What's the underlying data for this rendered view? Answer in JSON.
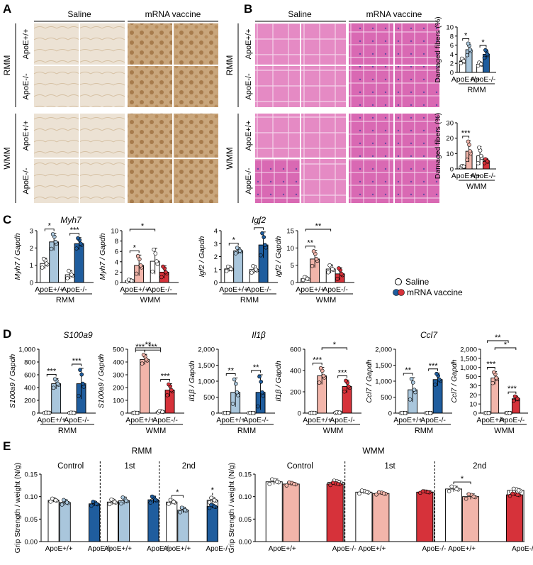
{
  "colors": {
    "saline": "#ffffff",
    "rmm_wt": "#a9c6dc",
    "rmm_ko": "#1f5d9e",
    "wmm_wt": "#f2b5aa",
    "wmm_ko": "#d6323a",
    "dab": "#b48a5e",
    "he": "#d977b8"
  },
  "panels": {
    "A": "A",
    "B": "B",
    "C": "C",
    "D": "D",
    "E": "E"
  },
  "image_panel": {
    "col_saline": "Saline",
    "col_vaccine": "mRNA vaccine",
    "grp_rmm": "RMM",
    "grp_wmm": "WMM",
    "row_wt": "ApoE+/+",
    "row_ko": "ApoE-/-"
  },
  "legend": {
    "saline": "Saline",
    "vaccine": "mRNA vaccine"
  },
  "gene": {
    "myh7": "Myh7",
    "igf2": "Igf2",
    "s100a9": "S100a9",
    "il1b": "Il1β",
    "ccl7": "Ccl7"
  },
  "ylabels": {
    "damaged": "Damaged fibers (%)",
    "myh7": "Myh7 / Gapdh",
    "igf2": "Igf2 / Gapdh",
    "s100a9": "S100a9 / Gapdh",
    "il1b": "Il1β / Gapdh",
    "ccl7": "Ccl7 / Gapdh",
    "grip": "Grip Strength / weight (N/g)"
  },
  "xlabels": {
    "wt": "ApoE+/+",
    "ko": "ApoE-/-",
    "rmm": "RMM",
    "wmm": "WMM"
  },
  "grip_titles": {
    "rmm": "RMM",
    "wmm": "WMM",
    "control": "Control",
    "first": "1st",
    "second": "2nd"
  },
  "chart_data": [
    {
      "id": "B_rmm",
      "type": "bar",
      "ylabel": "Damaged fibers (%)",
      "group": "RMM",
      "ylim": [
        0,
        10
      ],
      "yticks": [
        "0",
        "2",
        "4",
        "6",
        "8",
        "10"
      ],
      "bars": [
        {
          "g": "ApoE+/+",
          "c": "saline",
          "v": 2.5,
          "e": 0.6
        },
        {
          "g": "ApoE+/+",
          "c": "vaccine",
          "v": 5.0,
          "e": 1.5
        },
        {
          "g": "ApoE-/-",
          "c": "saline",
          "v": 1.8,
          "e": 0.4
        },
        {
          "g": "ApoE-/-",
          "c": "vaccine",
          "v": 4.0,
          "e": 1.0
        }
      ],
      "sig": [
        {
          "a": 0,
          "b": 1,
          "t": "*"
        },
        {
          "a": 2,
          "b": 3,
          "t": "*"
        }
      ]
    },
    {
      "id": "B_wmm",
      "type": "bar",
      "ylabel": "Damaged fibers (%)",
      "group": "WMM",
      "ylim": [
        0,
        30
      ],
      "yticks": [
        "0",
        "10",
        "20",
        "30"
      ],
      "bars": [
        {
          "g": "ApoE+/+",
          "c": "saline",
          "v": 1.5,
          "e": 0.5
        },
        {
          "g": "ApoE+/+",
          "c": "vaccine",
          "v": 11.5,
          "e": 7
        },
        {
          "g": "ApoE-/-",
          "c": "saline",
          "v": 8.5,
          "e": 6
        },
        {
          "g": "ApoE-/-",
          "c": "vaccine",
          "v": 5.0,
          "e": 1.5
        }
      ],
      "sig": [
        {
          "a": 0,
          "b": 1,
          "t": "***"
        }
      ]
    },
    {
      "id": "C_myh7_rmm",
      "type": "bar",
      "ylabel": "Myh7 / Gapdh",
      "title": "Myh7",
      "group": "RMM",
      "ylim": [
        0,
        3
      ],
      "yticks": [
        "0",
        "1",
        "2",
        "3"
      ],
      "bars": [
        {
          "g": "ApoE+/+",
          "c": "saline",
          "v": 1.1,
          "e": 0.3
        },
        {
          "g": "ApoE+/+",
          "c": "vaccine",
          "v": 2.35,
          "e": 0.5
        },
        {
          "g": "ApoE-/-",
          "c": "saline",
          "v": 0.45,
          "e": 0.25
        },
        {
          "g": "ApoE-/-",
          "c": "vaccine",
          "v": 2.25,
          "e": 0.35
        }
      ],
      "sig": [
        {
          "a": 0,
          "b": 1,
          "t": "*"
        },
        {
          "a": 2,
          "b": 3,
          "t": "***"
        }
      ]
    },
    {
      "id": "C_myh7_wmm",
      "type": "bar",
      "ylabel": "Myh7 / Gapdh",
      "group": "WMM",
      "ylim": [
        0,
        10
      ],
      "yticks": [
        "0",
        "2",
        "4",
        "6",
        "8",
        "10"
      ],
      "bars": [
        {
          "g": "ApoE+/+",
          "c": "saline",
          "v": 0.35,
          "e": 0.2
        },
        {
          "g": "ApoE+/+",
          "c": "vaccine",
          "v": 3.3,
          "e": 2
        },
        {
          "g": "ApoE-/-",
          "c": "saline",
          "v": 4.1,
          "e": 2.5
        },
        {
          "g": "ApoE-/-",
          "c": "vaccine",
          "v": 2.0,
          "e": 1.2
        }
      ],
      "sig": [
        {
          "a": 0,
          "b": 1,
          "t": "*"
        },
        {
          "a": 0,
          "b": 2,
          "t": "*",
          "lvl": 2
        }
      ]
    },
    {
      "id": "C_igf2_rmm",
      "type": "bar",
      "ylabel": "Igf2 / Gapdh",
      "title": "Igf2",
      "group": "RMM",
      "ylim": [
        0,
        4
      ],
      "yticks": [
        "0",
        "1",
        "2",
        "3",
        "4"
      ],
      "bars": [
        {
          "g": "ApoE+/+",
          "c": "saline",
          "v": 1.05,
          "e": 0.2
        },
        {
          "g": "ApoE+/+",
          "c": "vaccine",
          "v": 2.45,
          "e": 0.25
        },
        {
          "g": "ApoE-/-",
          "c": "saline",
          "v": 1.0,
          "e": 0.3
        },
        {
          "g": "ApoE-/-",
          "c": "vaccine",
          "v": 2.9,
          "e": 1.0
        }
      ],
      "sig": [
        {
          "a": 0,
          "b": 1,
          "t": "*"
        },
        {
          "a": 2,
          "b": 3,
          "t": "*"
        }
      ]
    },
    {
      "id": "C_igf2_wmm",
      "type": "bar",
      "ylabel": "Igf2 / Gapdh",
      "group": "WMM",
      "ylim": [
        0,
        15
      ],
      "yticks": [
        "0",
        "5",
        "10",
        "15"
      ],
      "bars": [
        {
          "g": "ApoE+/+",
          "c": "saline",
          "v": 1.1,
          "e": 0.5
        },
        {
          "g": "ApoE+/+",
          "c": "vaccine",
          "v": 6.8,
          "e": 2.5
        },
        {
          "g": "ApoE-/-",
          "c": "saline",
          "v": 3.9,
          "e": 1.2
        },
        {
          "g": "ApoE-/-",
          "c": "vaccine",
          "v": 2.5,
          "e": 1.8
        }
      ],
      "sig": [
        {
          "a": 0,
          "b": 1,
          "t": "**"
        },
        {
          "a": 0,
          "b": 2,
          "t": "**",
          "lvl": 2
        }
      ]
    },
    {
      "id": "D_s100a9_rmm",
      "type": "bar",
      "ylabel": "S100a9 / Gapdh",
      "title": "S100a9",
      "group": "RMM",
      "ylim": [
        0,
        1000
      ],
      "yticks": [
        "0",
        "200",
        "400",
        "600",
        "800",
        "1,000"
      ],
      "bars": [
        {
          "g": "ApoE+/+",
          "c": "saline",
          "v": 5,
          "e": 3
        },
        {
          "g": "ApoE+/+",
          "c": "vaccine",
          "v": 460,
          "e": 80
        },
        {
          "g": "ApoE-/-",
          "c": "saline",
          "v": 5,
          "e": 3
        },
        {
          "g": "ApoE-/-",
          "c": "vaccine",
          "v": 460,
          "e": 240
        }
      ],
      "sig": [
        {
          "a": 0,
          "b": 1,
          "t": "***"
        },
        {
          "a": 2,
          "b": 3,
          "t": "***"
        }
      ]
    },
    {
      "id": "D_s100a9_wmm",
      "type": "bar",
      "ylabel": "S100a9 / Gapdh",
      "group": "WMM",
      "ylim": [
        0,
        500
      ],
      "yticks": [
        "0",
        "100",
        "200",
        "300",
        "400",
        "500"
      ],
      "bars": [
        {
          "g": "ApoE+/+",
          "c": "saline",
          "v": 2,
          "e": 1
        },
        {
          "g": "ApoE+/+",
          "c": "vaccine",
          "v": 420,
          "e": 40
        },
        {
          "g": "ApoE-/-",
          "c": "saline",
          "v": 10,
          "e": 6
        },
        {
          "g": "ApoE-/-",
          "c": "vaccine",
          "v": 180,
          "e": 50
        }
      ],
      "sig": [
        {
          "a": 0,
          "b": 1,
          "t": "***"
        },
        {
          "a": 1,
          "b": 2,
          "t": "***"
        },
        {
          "a": 2,
          "b": 3,
          "t": "***"
        },
        {
          "a": 0,
          "b": 2,
          "t": "**",
          "lvl": 2
        }
      ]
    },
    {
      "id": "D_il1b_rmm",
      "type": "bar",
      "ylabel": "Il1β / Gapdh",
      "title": "Il1β",
      "group": "RMM",
      "ylim": [
        0,
        2000
      ],
      "yticks": [
        "0",
        "500",
        "1,000",
        "1,500",
        "2,000"
      ],
      "bars": [
        {
          "g": "ApoE+/+",
          "c": "saline",
          "v": 5,
          "e": 3
        },
        {
          "g": "ApoE+/+",
          "c": "vaccine",
          "v": 650,
          "e": 450
        },
        {
          "g": "ApoE-/-",
          "c": "saline",
          "v": 5,
          "e": 3
        },
        {
          "g": "ApoE-/-",
          "c": "vaccine",
          "v": 650,
          "e": 550
        }
      ],
      "sig": [
        {
          "a": 0,
          "b": 1,
          "t": "**"
        },
        {
          "a": 2,
          "b": 3,
          "t": "**"
        }
      ]
    },
    {
      "id": "D_il1b_wmm",
      "type": "bar",
      "ylabel": "Il1β / Gapdh",
      "group": "WMM",
      "ylim": [
        0,
        600
      ],
      "yticks": [
        "0",
        "200",
        "400",
        "600"
      ],
      "bars": [
        {
          "g": "ApoE+/+",
          "c": "saline",
          "v": 2,
          "e": 1
        },
        {
          "g": "ApoE+/+",
          "c": "vaccine",
          "v": 350,
          "e": 80
        },
        {
          "g": "ApoE-/-",
          "c": "saline",
          "v": 5,
          "e": 3
        },
        {
          "g": "ApoE-/-",
          "c": "vaccine",
          "v": 250,
          "e": 60
        }
      ],
      "sig": [
        {
          "a": 0,
          "b": 1,
          "t": "***"
        },
        {
          "a": 2,
          "b": 3,
          "t": "***"
        },
        {
          "a": 1,
          "b": 3,
          "t": "*",
          "lvl": 2
        }
      ]
    },
    {
      "id": "D_ccl7_rmm",
      "type": "bar",
      "ylabel": "Ccl7 / Gapdh",
      "title": "Ccl7",
      "group": "RMM",
      "ylim": [
        0,
        2000
      ],
      "yticks": [
        "0",
        "500",
        "1,000",
        "1,500",
        "2,000"
      ],
      "bars": [
        {
          "g": "ApoE+/+",
          "c": "saline",
          "v": 5,
          "e": 3
        },
        {
          "g": "ApoE+/+",
          "c": "vaccine",
          "v": 730,
          "e": 380
        },
        {
          "g": "ApoE-/-",
          "c": "saline",
          "v": 5,
          "e": 3
        },
        {
          "g": "ApoE-/-",
          "c": "vaccine",
          "v": 1050,
          "e": 200
        }
      ],
      "sig": [
        {
          "a": 0,
          "b": 1,
          "t": "**"
        },
        {
          "a": 2,
          "b": 3,
          "t": "***"
        }
      ]
    },
    {
      "id": "D_ccl7_wmm",
      "type": "bar",
      "ylabel": "Ccl7 / Gapdh",
      "group": "WMM",
      "ylim": [
        0,
        2000
      ],
      "yticks": [
        "0",
        "10",
        "20",
        "30",
        "500",
        "1,000",
        "1,500",
        "2,000"
      ],
      "bars": [
        {
          "g": "ApoE+/+",
          "c": "saline",
          "v": 2,
          "e": 1
        },
        {
          "g": "ApoE+/+",
          "c": "vaccine",
          "v": 1100,
          "e": 200
        },
        {
          "g": "ApoE-/-",
          "c": "saline",
          "v": 5,
          "e": 3
        },
        {
          "g": "ApoE-/-",
          "c": "vaccine",
          "v": 450,
          "e": 80
        }
      ],
      "sig": [
        {
          "a": 0,
          "b": 1,
          "t": "***"
        },
        {
          "a": 1,
          "b": 3,
          "t": "*",
          "lvl": 2
        },
        {
          "a": 2,
          "b": 3,
          "t": "***"
        },
        {
          "a": 0,
          "b": 2,
          "t": "**",
          "lvl": 3
        }
      ]
    },
    {
      "id": "E_rmm",
      "type": "bar",
      "ylabel": "Grip Strength / weight (N/g)",
      "group": "RMM",
      "ylim": [
        0,
        0.15
      ],
      "yticks": [
        "0.00",
        "0.05",
        "0.10",
        "0.15"
      ],
      "sections": [
        "Control",
        "1st",
        "2nd"
      ],
      "bars": [
        {
          "s": 0,
          "c": "saline",
          "g": "ApoE+/+",
          "v": 0.092,
          "e": 0.004
        },
        {
          "s": 0,
          "c": "vaccine",
          "g": "ApoE+/+",
          "v": 0.087,
          "e": 0.006
        },
        {
          "s": 0,
          "c": "saline",
          "g": "ApoE-/-",
          "v": 0.08,
          "e": 0.006
        },
        {
          "s": 0,
          "c": "vaccine",
          "g": "ApoE-/-",
          "v": 0.084,
          "e": 0.005
        },
        {
          "s": 1,
          "c": "saline",
          "g": "ApoE+/+",
          "v": 0.088,
          "e": 0.006
        },
        {
          "s": 1,
          "c": "vaccine",
          "g": "ApoE+/+",
          "v": 0.091,
          "e": 0.008
        },
        {
          "s": 1,
          "c": "saline",
          "g": "ApoE-/-",
          "v": 0.088,
          "e": 0.004
        },
        {
          "s": 1,
          "c": "vaccine",
          "g": "ApoE-/-",
          "v": 0.093,
          "e": 0.008
        },
        {
          "s": 2,
          "c": "saline",
          "g": "ApoE+/+",
          "v": 0.088,
          "e": 0.005
        },
        {
          "s": 2,
          "c": "vaccine",
          "g": "ApoE+/+",
          "v": 0.07,
          "e": 0.006
        },
        {
          "s": 2,
          "c": "saline",
          "g": "ApoE-/-",
          "v": 0.092,
          "e": 0.006
        },
        {
          "s": 2,
          "c": "vaccine",
          "g": "ApoE-/-",
          "v": 0.078,
          "e": 0.004
        }
      ],
      "sig": [
        {
          "a": 8,
          "b": 9,
          "t": "*"
        },
        {
          "a": 10,
          "b": 11,
          "t": "*"
        }
      ]
    },
    {
      "id": "E_wmm",
      "type": "bar",
      "ylabel": "Grip Strength / weight (N/g)",
      "group": "WMM",
      "ylim": [
        0,
        0.15
      ],
      "yticks": [
        "0.00",
        "0.05",
        "0.10",
        "0.15"
      ],
      "sections": [
        "Control",
        "1st",
        "2nd"
      ],
      "bars": [
        {
          "s": 0,
          "c": "saline",
          "g": "ApoE+/+",
          "v": 0.133,
          "e": 0.006
        },
        {
          "s": 0,
          "c": "vaccine",
          "g": "ApoE+/+",
          "v": 0.128,
          "e": 0.004
        },
        {
          "s": 0,
          "c": "saline",
          "g": "ApoE-/-",
          "v": 0.132,
          "e": 0.004
        },
        {
          "s": 0,
          "c": "vaccine",
          "g": "ApoE-/-",
          "v": 0.128,
          "e": 0.003
        },
        {
          "s": 1,
          "c": "saline",
          "g": "ApoE+/+",
          "v": 0.11,
          "e": 0.004
        },
        {
          "s": 1,
          "c": "vaccine",
          "g": "ApoE+/+",
          "v": 0.107,
          "e": 0.003
        },
        {
          "s": 1,
          "c": "saline",
          "g": "ApoE-/-",
          "v": 0.11,
          "e": 0.002
        },
        {
          "s": 1,
          "c": "vaccine",
          "g": "ApoE-/-",
          "v": 0.11,
          "e": 0.002
        },
        {
          "s": 2,
          "c": "saline",
          "g": "ApoE+/+",
          "v": 0.117,
          "e": 0.006
        },
        {
          "s": 2,
          "c": "vaccine",
          "g": "ApoE+/+",
          "v": 0.1,
          "e": 0.006
        },
        {
          "s": 2,
          "c": "saline",
          "g": "ApoE-/-",
          "v": 0.114,
          "e": 0.004
        },
        {
          "s": 2,
          "c": "vaccine",
          "g": "ApoE-/-",
          "v": 0.104,
          "e": 0.003
        }
      ],
      "sig": [
        {
          "a": 8,
          "b": 9,
          "t": "*"
        }
      ]
    }
  ]
}
